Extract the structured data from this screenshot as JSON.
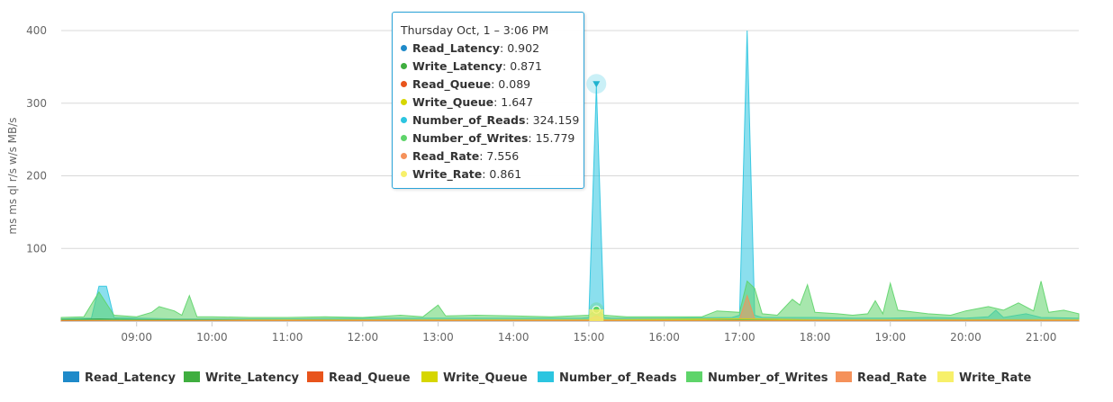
{
  "chart_data": {
    "type": "area",
    "title": "",
    "ylabel": "ms ms ql r/s w/s MB/s",
    "ylim": [
      0,
      400
    ],
    "yticks": [
      100,
      200,
      300,
      400
    ],
    "xlim_hours": [
      8.0,
      21.5
    ],
    "xtick_labels": [
      "09:00",
      "10:00",
      "11:00",
      "12:00",
      "13:00",
      "14:00",
      "15:00",
      "16:00",
      "17:00",
      "18:00",
      "19:00",
      "20:00",
      "21:00"
    ],
    "xticks_hours": [
      9,
      10,
      11,
      12,
      13,
      14,
      15,
      16,
      17,
      18,
      19,
      20,
      21
    ],
    "grid": true,
    "legend_position": "bottom",
    "series": [
      {
        "name": "Read_Latency",
        "color": "#1f8ac9",
        "points": [
          [
            8.0,
            2
          ],
          [
            8.5,
            3
          ],
          [
            9.0,
            2
          ],
          [
            10.0,
            1.5
          ],
          [
            11.0,
            1
          ],
          [
            12.0,
            1.2
          ],
          [
            13.0,
            1
          ],
          [
            14.0,
            1
          ],
          [
            15.0,
            1
          ],
          [
            15.1,
            0.9
          ],
          [
            16.0,
            1
          ],
          [
            17.0,
            1.5
          ],
          [
            18.0,
            1
          ],
          [
            19.0,
            1
          ],
          [
            20.0,
            1.2
          ],
          [
            21.0,
            1
          ],
          [
            21.5,
            1
          ]
        ]
      },
      {
        "name": "Write_Latency",
        "color": "#3fae3f",
        "points": [
          [
            8.0,
            2
          ],
          [
            8.5,
            3
          ],
          [
            9.0,
            2
          ],
          [
            10.0,
            1.5
          ],
          [
            11.0,
            1
          ],
          [
            12.0,
            1.2
          ],
          [
            13.0,
            1
          ],
          [
            14.0,
            1
          ],
          [
            15.0,
            1
          ],
          [
            15.1,
            0.87
          ],
          [
            16.0,
            1
          ],
          [
            17.0,
            1.5
          ],
          [
            18.0,
            1
          ],
          [
            19.0,
            1
          ],
          [
            20.0,
            1.2
          ],
          [
            21.0,
            1
          ],
          [
            21.5,
            1
          ]
        ]
      },
      {
        "name": "Read_Queue",
        "color": "#e8541c",
        "points": [
          [
            8.0,
            0.2
          ],
          [
            12.0,
            0.1
          ],
          [
            15.1,
            0.09
          ],
          [
            18.0,
            0.1
          ],
          [
            21.5,
            0.1
          ]
        ]
      },
      {
        "name": "Write_Queue",
        "color": "#d6d600",
        "points": [
          [
            8.0,
            2
          ],
          [
            9.0,
            1.5
          ],
          [
            12.0,
            1.5
          ],
          [
            15.1,
            1.65
          ],
          [
            17.1,
            3
          ],
          [
            18.0,
            1.5
          ],
          [
            21.5,
            1.5
          ]
        ]
      },
      {
        "name": "Number_of_Reads",
        "color": "#2cc5e0",
        "points": [
          [
            8.0,
            3
          ],
          [
            8.4,
            4
          ],
          [
            8.5,
            48
          ],
          [
            8.6,
            48
          ],
          [
            8.7,
            5
          ],
          [
            9.0,
            4
          ],
          [
            9.5,
            3
          ],
          [
            10.0,
            3
          ],
          [
            11.0,
            3
          ],
          [
            12.0,
            4
          ],
          [
            13.0,
            4
          ],
          [
            14.0,
            4
          ],
          [
            14.9,
            4
          ],
          [
            15.0,
            5
          ],
          [
            15.1,
            324.159
          ],
          [
            15.2,
            5
          ],
          [
            15.3,
            4
          ],
          [
            16.0,
            4
          ],
          [
            16.9,
            5
          ],
          [
            17.0,
            8
          ],
          [
            17.1,
            400
          ],
          [
            17.2,
            8
          ],
          [
            17.3,
            5
          ],
          [
            18.0,
            5
          ],
          [
            18.5,
            4
          ],
          [
            19.0,
            4
          ],
          [
            19.5,
            5
          ],
          [
            20.0,
            4
          ],
          [
            20.3,
            6
          ],
          [
            20.4,
            15
          ],
          [
            20.5,
            5
          ],
          [
            20.8,
            10
          ],
          [
            21.0,
            5
          ],
          [
            21.5,
            4
          ]
        ]
      },
      {
        "name": "Number_of_Writes",
        "color": "#5ed46a",
        "points": [
          [
            8.0,
            5
          ],
          [
            8.3,
            6
          ],
          [
            8.5,
            40
          ],
          [
            8.7,
            8
          ],
          [
            9.0,
            6
          ],
          [
            9.2,
            12
          ],
          [
            9.3,
            20
          ],
          [
            9.5,
            14
          ],
          [
            9.6,
            8
          ],
          [
            9.7,
            35
          ],
          [
            9.8,
            6
          ],
          [
            10.0,
            6
          ],
          [
            10.5,
            5
          ],
          [
            11.0,
            5
          ],
          [
            11.5,
            6
          ],
          [
            12.0,
            5
          ],
          [
            12.5,
            8
          ],
          [
            12.8,
            6
          ],
          [
            13.0,
            22
          ],
          [
            13.1,
            7
          ],
          [
            13.5,
            8
          ],
          [
            14.0,
            7
          ],
          [
            14.5,
            6
          ],
          [
            15.0,
            8
          ],
          [
            15.1,
            15.779
          ],
          [
            15.2,
            8
          ],
          [
            15.5,
            6
          ],
          [
            16.0,
            6
          ],
          [
            16.5,
            6
          ],
          [
            16.7,
            14
          ],
          [
            17.0,
            12
          ],
          [
            17.1,
            55
          ],
          [
            17.2,
            45
          ],
          [
            17.3,
            10
          ],
          [
            17.5,
            8
          ],
          [
            17.7,
            30
          ],
          [
            17.8,
            22
          ],
          [
            17.9,
            50
          ],
          [
            18.0,
            12
          ],
          [
            18.3,
            10
          ],
          [
            18.5,
            8
          ],
          [
            18.7,
            10
          ],
          [
            18.8,
            28
          ],
          [
            18.9,
            10
          ],
          [
            19.0,
            52
          ],
          [
            19.1,
            15
          ],
          [
            19.5,
            10
          ],
          [
            19.8,
            8
          ],
          [
            20.0,
            14
          ],
          [
            20.3,
            20
          ],
          [
            20.5,
            15
          ],
          [
            20.7,
            25
          ],
          [
            20.9,
            14
          ],
          [
            21.0,
            55
          ],
          [
            21.1,
            12
          ],
          [
            21.3,
            15
          ],
          [
            21.5,
            10
          ]
        ]
      },
      {
        "name": "Read_Rate",
        "color": "#f5915a",
        "points": [
          [
            8.0,
            2
          ],
          [
            9.0,
            2
          ],
          [
            12.0,
            2
          ],
          [
            15.0,
            2
          ],
          [
            15.1,
            7.556
          ],
          [
            15.2,
            2
          ],
          [
            17.0,
            3
          ],
          [
            17.1,
            35
          ],
          [
            17.2,
            3
          ],
          [
            18.0,
            2
          ],
          [
            21.5,
            2
          ]
        ]
      },
      {
        "name": "Write_Rate",
        "color": "#f7f06a",
        "points": [
          [
            8.0,
            1
          ],
          [
            12.0,
            1
          ],
          [
            15.1,
            0.861
          ],
          [
            18.0,
            1
          ],
          [
            21.5,
            1
          ]
        ]
      }
    ]
  },
  "tooltip": {
    "header": "Thursday Oct, 1 – 3:06 PM",
    "rows": [
      {
        "name": "Read_Latency",
        "value": "0.902",
        "color": "#1f8ac9"
      },
      {
        "name": "Write_Latency",
        "value": "0.871",
        "color": "#3fae3f"
      },
      {
        "name": "Read_Queue",
        "value": "0.089",
        "color": "#e8541c"
      },
      {
        "name": "Write_Queue",
        "value": "1.647",
        "color": "#d6d600"
      },
      {
        "name": "Number_of_Reads",
        "value": "324.159",
        "color": "#2cc5e0"
      },
      {
        "name": "Number_of_Writes",
        "value": "15.779",
        "color": "#5ed46a"
      },
      {
        "name": "Read_Rate",
        "value": "7.556",
        "color": "#f5915a"
      },
      {
        "name": "Write_Rate",
        "value": "0.861",
        "color": "#f7f06a"
      }
    ],
    "hover_hour": 15.1
  }
}
